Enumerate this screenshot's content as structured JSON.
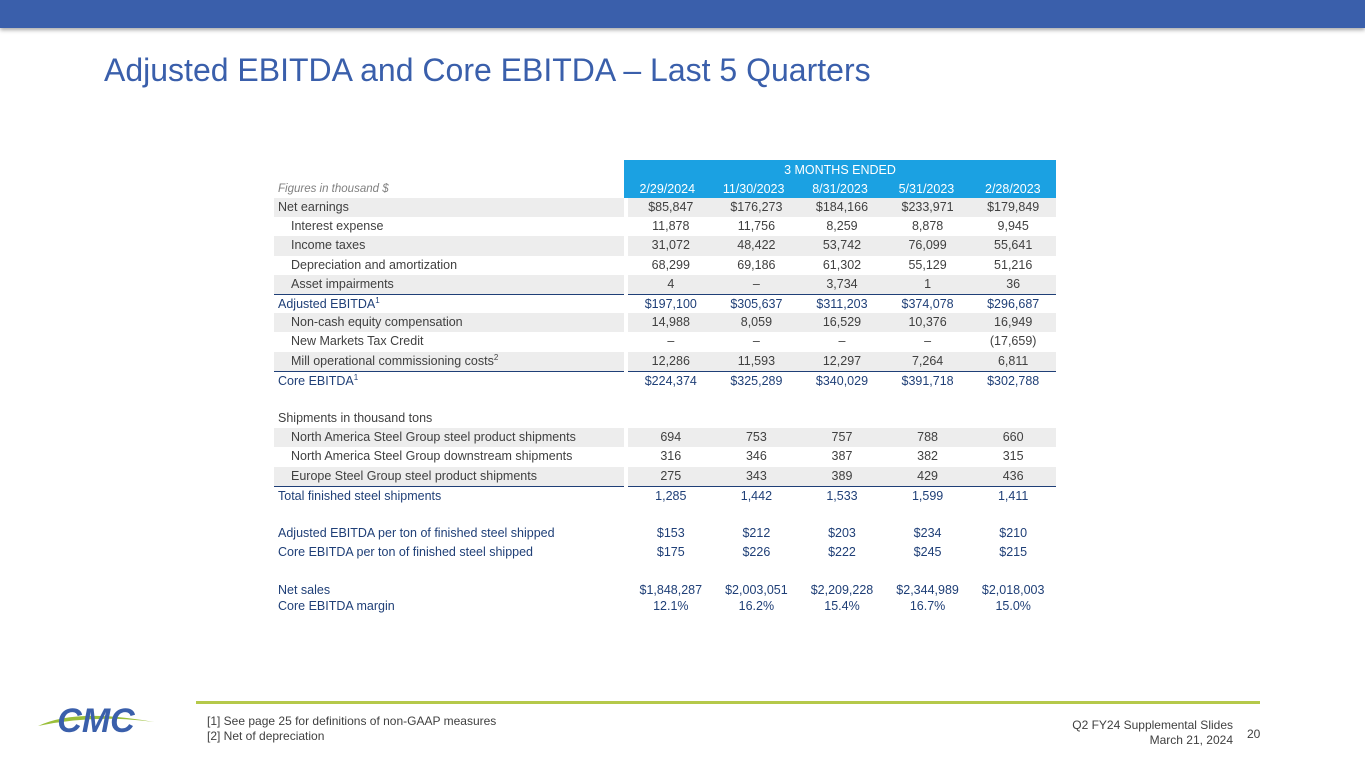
{
  "title": "Adjusted EBITDA and Core EBITDA – Last 5 Quarters",
  "table": {
    "period_header": "3 MONTHS ENDED",
    "units_label": "Figures in thousand $",
    "columns": [
      "2/29/2024",
      "11/30/2023",
      "8/31/2023",
      "5/31/2023",
      "2/28/2023"
    ],
    "rows": {
      "net_earnings": {
        "label": "Net earnings",
        "values": [
          "$85,847",
          "$176,273",
          "$184,166",
          "$233,971",
          "$179,849"
        ]
      },
      "interest_expense": {
        "label": "Interest expense",
        "values": [
          "11,878",
          "11,756",
          "8,259",
          "8,878",
          "9,945"
        ]
      },
      "income_taxes": {
        "label": "Income taxes",
        "values": [
          "31,072",
          "48,422",
          "53,742",
          "76,099",
          "55,641"
        ]
      },
      "depreciation": {
        "label": "Depreciation and amortization",
        "values": [
          "68,299",
          "69,186",
          "61,302",
          "55,129",
          "51,216"
        ]
      },
      "asset_impairments": {
        "label": "Asset impairments",
        "values": [
          "4",
          "–",
          "3,734",
          "1",
          "36"
        ]
      },
      "adjusted_ebitda": {
        "label": "Adjusted EBITDA",
        "sup": "1",
        "values": [
          "$197,100",
          "$305,637",
          "$311,203",
          "$374,078",
          "$296,687"
        ]
      },
      "noncash_equity": {
        "label": "Non-cash equity compensation",
        "values": [
          "14,988",
          "8,059",
          "16,529",
          "10,376",
          "16,949"
        ]
      },
      "nmtc": {
        "label": "New Markets Tax Credit",
        "values": [
          "–",
          "–",
          "–",
          "–",
          "(17,659)"
        ]
      },
      "mill_costs": {
        "label": "Mill operational commissioning costs",
        "sup": "2",
        "values": [
          "12,286",
          "11,593",
          "12,297",
          "7,264",
          "6,811"
        ]
      },
      "core_ebitda": {
        "label": "Core EBITDA",
        "sup": "1",
        "values": [
          "$224,374",
          "$325,289",
          "$340,029",
          "$391,718",
          "$302,788"
        ]
      },
      "shipments_header": {
        "label": "Shipments in thousand tons"
      },
      "na_steel_product": {
        "label": "North America Steel Group steel product shipments",
        "values": [
          "694",
          "753",
          "757",
          "788",
          "660"
        ]
      },
      "na_downstream": {
        "label": "North America Steel Group downstream shipments",
        "values": [
          "316",
          "346",
          "387",
          "382",
          "315"
        ]
      },
      "europe_steel": {
        "label": "Europe Steel Group steel product shipments",
        "values": [
          "275",
          "343",
          "389",
          "429",
          "436"
        ]
      },
      "total_shipments": {
        "label": "Total finished steel shipments",
        "values": [
          "1,285",
          "1,442",
          "1,533",
          "1,599",
          "1,411"
        ]
      },
      "adj_per_ton": {
        "label": "Adjusted EBITDA per ton of finished steel shipped",
        "values": [
          "$153",
          "$212",
          "$203",
          "$234",
          "$210"
        ]
      },
      "core_per_ton": {
        "label": "Core EBITDA per ton of finished steel shipped",
        "values": [
          "$175",
          "$226",
          "$222",
          "$245",
          "$215"
        ]
      },
      "net_sales": {
        "label": "Net sales",
        "values": [
          "$1,848,287",
          "$2,003,051",
          "$2,209,228",
          "$2,344,989",
          "$2,018,003"
        ]
      },
      "core_margin": {
        "label": "Core EBITDA margin",
        "values": [
          "12.1%",
          "16.2%",
          "15.4%",
          "16.7%",
          "15.0%"
        ]
      }
    }
  },
  "footnotes": [
    "[1] See page 25 for definitions of non-GAAP measures",
    "[2] Net of depreciation"
  ],
  "footer": {
    "deck": "Q2 FY24 Supplemental Slides",
    "date": "March 21, 2024",
    "page": "20"
  },
  "logo_text": "CMC",
  "colors": {
    "title": "#3a5fab",
    "header_band": "#1ba1e2",
    "accent_line": "#b5c94a",
    "total_text": "#1f3f77"
  }
}
